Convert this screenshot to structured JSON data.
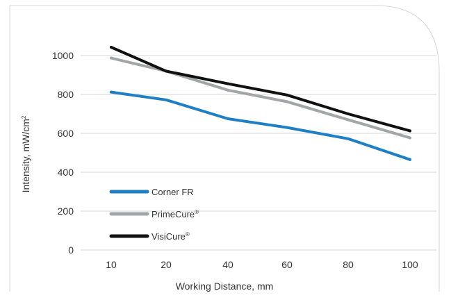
{
  "chart_data": {
    "type": "line",
    "x_labels": [
      "10",
      "20",
      "40",
      "60",
      "80",
      "100"
    ],
    "xlabel": "Working Distance, mm",
    "ylabel": "Intensity, mW/cm",
    "ylabel_superscript": "2",
    "ylim": [
      0,
      1000
    ],
    "yticks": [
      "0",
      "200",
      "400",
      "600",
      "800",
      "1000"
    ],
    "grid": "horizontal",
    "legend_position": "bottom-left",
    "series": [
      {
        "name": "Corner FR",
        "mark": "",
        "color": "#1f7fc4",
        "values": [
          812,
          772,
          675,
          630,
          572,
          465
        ]
      },
      {
        "name": "PrimeCure",
        "mark": "®",
        "color": "#a3a5a7",
        "values": [
          987,
          920,
          822,
          763,
          670,
          577
        ]
      },
      {
        "name": "VisiCure",
        "mark": "®",
        "color": "#111111",
        "values": [
          1043,
          920,
          855,
          797,
          700,
          613
        ]
      }
    ]
  }
}
